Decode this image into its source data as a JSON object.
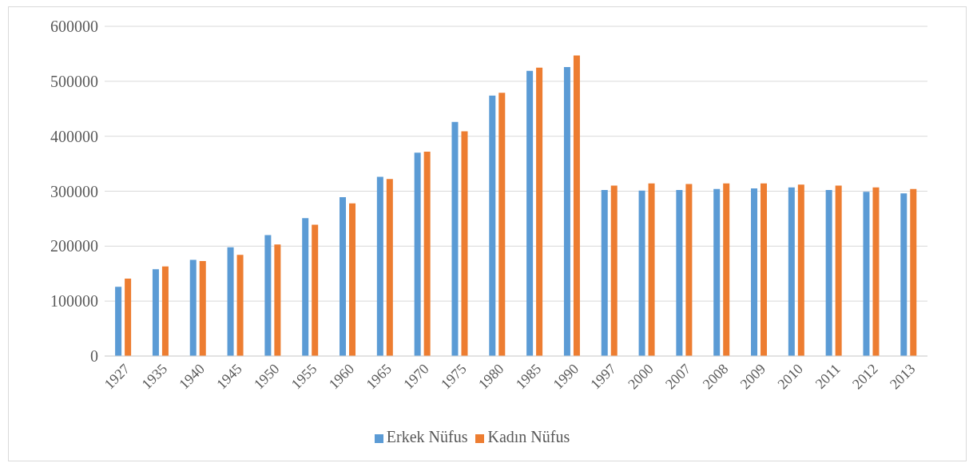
{
  "chart_data": {
    "type": "bar",
    "categories": [
      "1927",
      "1935",
      "1940",
      "1945",
      "1950",
      "1955",
      "1960",
      "1965",
      "1970",
      "1975",
      "1980",
      "1985",
      "1990",
      "1997",
      "2000",
      "2007",
      "2008",
      "2009",
      "2010",
      "2011",
      "2012",
      "2013"
    ],
    "series": [
      {
        "name": "Erkek Nüfus",
        "color": "#5b9bd5",
        "values": [
          126000,
          158000,
          175000,
          198000,
          220000,
          251000,
          289000,
          326000,
          370000,
          426000,
          474000,
          519000,
          526000,
          302000,
          301000,
          302000,
          304000,
          305000,
          307000,
          302000,
          299000,
          296000
        ]
      },
      {
        "name": "Kadın Nüfus",
        "color": "#ed7d31",
        "values": [
          141000,
          163000,
          173000,
          184000,
          203000,
          239000,
          278000,
          322000,
          372000,
          409000,
          479000,
          525000,
          547000,
          310000,
          314000,
          313000,
          314000,
          314000,
          312000,
          310000,
          307000,
          304000
        ]
      }
    ],
    "ylim": [
      0,
      600000
    ],
    "yticks": [
      0,
      100000,
      200000,
      300000,
      400000,
      500000,
      600000
    ],
    "grid": "y",
    "legend": "bottom"
  }
}
